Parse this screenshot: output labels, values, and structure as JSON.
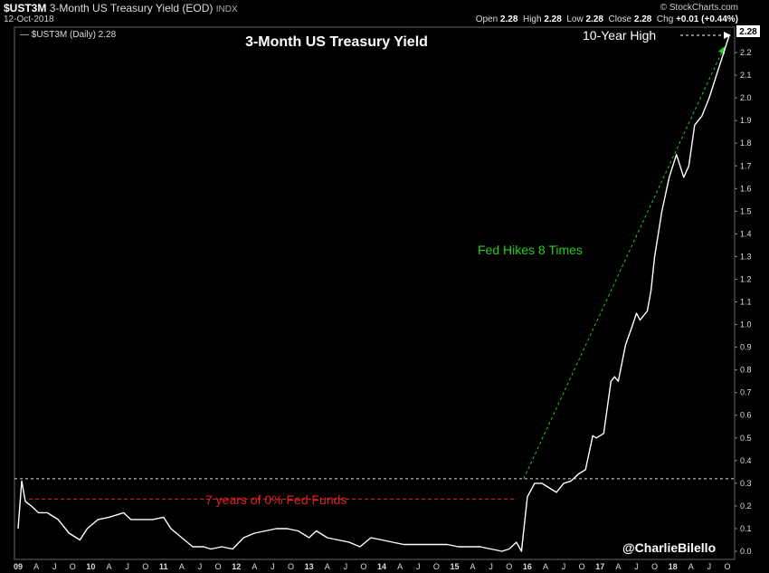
{
  "header": {
    "symbol": "$UST3M",
    "description": "3-Month US Treasury Yield (EOD)",
    "exchange": "INDX",
    "date": "12-Oct-2018",
    "brand": "© StockCharts.com",
    "ohlc": [
      {
        "label": "Open",
        "value": "2.28"
      },
      {
        "label": "High",
        "value": "2.28"
      },
      {
        "label": "Low",
        "value": "2.28"
      },
      {
        "label": "Close",
        "value": "2.28"
      },
      {
        "label": "Chg",
        "value": "+0.01 (+0.44%)"
      }
    ]
  },
  "legend": "$UST3M (Daily) 2.28",
  "last_value_label": "2.28",
  "colors": {
    "background": "#000000",
    "line": "#ffffff",
    "hike_annotation": "#22cc22",
    "zero_rate_annotation": "#dd2222"
  },
  "chart_data": {
    "type": "line",
    "title": "3-Month US Treasury Yield",
    "xlabel": "",
    "ylabel": "",
    "ylim": [
      0.0,
      2.32
    ],
    "grid": false,
    "y_ticks": [
      "0.0",
      "0.1",
      "0.2",
      "0.3",
      "0.4",
      "0.5",
      "0.6",
      "0.7",
      "0.8",
      "0.9",
      "1.0",
      "1.1",
      "1.2",
      "1.3",
      "1.4",
      "1.5",
      "1.6",
      "1.7",
      "1.8",
      "1.9",
      "2.0",
      "2.1",
      "2.2"
    ],
    "x_ticks": [
      {
        "label": "09",
        "bold": true
      },
      {
        "label": "A"
      },
      {
        "label": "J"
      },
      {
        "label": "O"
      },
      {
        "label": "10",
        "bold": true
      },
      {
        "label": "A"
      },
      {
        "label": "J"
      },
      {
        "label": "O"
      },
      {
        "label": "11",
        "bold": true
      },
      {
        "label": "A"
      },
      {
        "label": "J"
      },
      {
        "label": "O"
      },
      {
        "label": "12",
        "bold": true
      },
      {
        "label": "A"
      },
      {
        "label": "J"
      },
      {
        "label": "O"
      },
      {
        "label": "13",
        "bold": true
      },
      {
        "label": "A"
      },
      {
        "label": "J"
      },
      {
        "label": "O"
      },
      {
        "label": "14",
        "bold": true
      },
      {
        "label": "A"
      },
      {
        "label": "J"
      },
      {
        "label": "O"
      },
      {
        "label": "15",
        "bold": true
      },
      {
        "label": "A"
      },
      {
        "label": "J"
      },
      {
        "label": "O"
      },
      {
        "label": "16",
        "bold": true
      },
      {
        "label": "A"
      },
      {
        "label": "J"
      },
      {
        "label": "O"
      },
      {
        "label": "17",
        "bold": true
      },
      {
        "label": "A"
      },
      {
        "label": "J"
      },
      {
        "label": "O"
      },
      {
        "label": "18",
        "bold": true
      },
      {
        "label": "A"
      },
      {
        "label": "J"
      },
      {
        "label": "O"
      }
    ],
    "x_range": [
      2009.0,
      2018.8
    ],
    "series": [
      {
        "values_note": "",
        "x": [
          2009.0,
          2009.05,
          2009.1,
          2009.18,
          2009.28,
          2009.4,
          2009.55,
          2009.7,
          2009.85,
          2009.95,
          2010.1,
          2010.25,
          2010.35,
          2010.45,
          2010.55,
          2010.7,
          2010.85,
          2011.0,
          2011.1,
          2011.25,
          2011.4,
          2011.55,
          2011.65,
          2011.8,
          2011.95,
          2012.1,
          2012.25,
          2012.4,
          2012.55,
          2012.7,
          2012.85,
          2013.0,
          2013.1,
          2013.25,
          2013.4,
          2013.55,
          2013.7,
          2013.85,
          2014.0,
          2014.15,
          2014.3,
          2014.45,
          2014.6,
          2014.75,
          2014.9,
          2015.05,
          2015.2,
          2015.35,
          2015.5,
          2015.65,
          2015.75,
          2015.85,
          2015.92,
          2016.0,
          2016.1,
          2016.2,
          2016.3,
          2016.4,
          2016.5,
          2016.6,
          2016.7,
          2016.8,
          2016.9,
          2016.95,
          2017.0,
          2017.05,
          2017.15,
          2017.2,
          2017.25,
          2017.35,
          2017.45,
          2017.5,
          2017.55,
          2017.65,
          2017.7,
          2017.75,
          2017.85,
          2017.95,
          2018.05,
          2018.15,
          2018.22,
          2018.3,
          2018.4,
          2018.5,
          2018.6,
          2018.7,
          2018.78
        ],
        "y": [
          0.1,
          0.31,
          0.22,
          0.2,
          0.17,
          0.17,
          0.14,
          0.08,
          0.05,
          0.1,
          0.14,
          0.15,
          0.16,
          0.17,
          0.14,
          0.14,
          0.14,
          0.15,
          0.1,
          0.06,
          0.02,
          0.02,
          0.01,
          0.02,
          0.01,
          0.06,
          0.08,
          0.09,
          0.1,
          0.1,
          0.09,
          0.06,
          0.09,
          0.06,
          0.05,
          0.04,
          0.02,
          0.06,
          0.05,
          0.04,
          0.03,
          0.03,
          0.03,
          0.03,
          0.03,
          0.02,
          0.02,
          0.02,
          0.01,
          0.0,
          0.01,
          0.04,
          0.0,
          0.24,
          0.3,
          0.3,
          0.28,
          0.26,
          0.3,
          0.31,
          0.34,
          0.36,
          0.51,
          0.5,
          0.51,
          0.52,
          0.75,
          0.77,
          0.75,
          0.91,
          1.0,
          1.05,
          1.02,
          1.06,
          1.15,
          1.3,
          1.5,
          1.65,
          1.75,
          1.65,
          1.7,
          1.88,
          1.92,
          2.0,
          2.1,
          2.2,
          2.28
        ]
      }
    ],
    "annotations": {
      "ten_year_high": "10-Year High",
      "fed_hikes": "Fed Hikes 8 Times",
      "zero_funds": "7 years of 0% Fed Funds",
      "credit": "@CharlieBilello"
    },
    "reference_level": 0.32
  }
}
